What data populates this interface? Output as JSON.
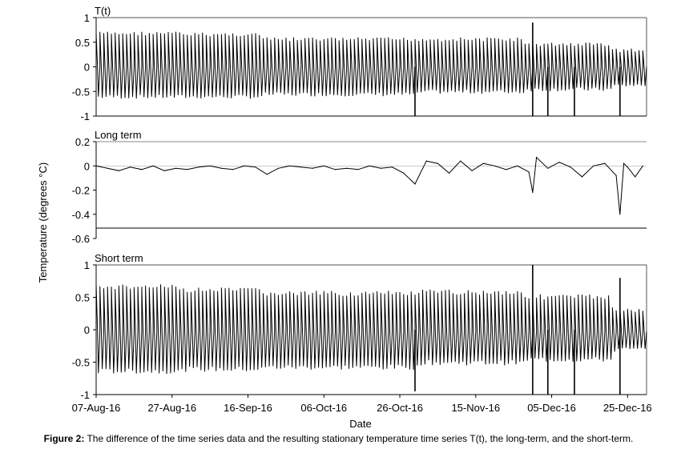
{
  "figure": {
    "ylabel": "Temperature (degrees °C)",
    "xlabel": "Date",
    "caption_label": "Figure 2:",
    "caption_text": " The difference of the time series data and the resulting stationary temperature time series T(t), the long-term, and the short-term."
  },
  "chart_data": [
    {
      "type": "line",
      "title": "T(t)",
      "xlabel": "",
      "ylabel": "",
      "ylim": [
        -1,
        1
      ],
      "yticks": [
        1,
        0.5,
        0,
        -0.5,
        -1
      ],
      "ytick_labels": [
        "1",
        "0.5",
        "0",
        "-0.5",
        "-1"
      ],
      "grid": false,
      "series": [
        {
          "x_start": "2016-08-07",
          "x_end": "2016-12-30",
          "description_values": "daily oscillation",
          "segments": [
            {
              "from": "2016-08-07",
              "to": "2016-08-30",
              "daily_max": 0.72,
              "daily_min": -0.65
            },
            {
              "from": "2016-08-30",
              "to": "2016-09-20",
              "daily_max": 0.7,
              "daily_min": -0.65
            },
            {
              "from": "2016-09-20",
              "to": "2016-10-31",
              "daily_max": 0.6,
              "daily_min": -0.6
            },
            {
              "from": "2016-10-31",
              "to": "2016-11-28",
              "daily_max": 0.6,
              "daily_min": -0.55
            },
            {
              "from": "2016-11-28",
              "to": "2016-12-21",
              "daily_max": 0.5,
              "daily_min": -0.5
            },
            {
              "from": "2016-12-21",
              "to": "2016-12-30",
              "daily_max": 0.38,
              "daily_min": -0.42
            }
          ],
          "spikes": [
            {
              "date": "2016-10-30",
              "value": -1.0
            },
            {
              "date": "2016-11-30",
              "value": 0.9
            },
            {
              "date": "2016-11-30",
              "value": -1.0
            },
            {
              "date": "2016-12-04",
              "value": -1.0
            },
            {
              "date": "2016-12-11",
              "value": -1.0
            },
            {
              "date": "2016-12-23",
              "value": -1.0
            }
          ]
        }
      ]
    },
    {
      "type": "line",
      "title": "Long term",
      "xlabel": "",
      "ylabel": "",
      "ylim": [
        -0.6,
        0.2
      ],
      "yticks": [
        0.2,
        0,
        -0.2,
        -0.4,
        -0.6
      ],
      "ytick_labels": [
        "0.2",
        "0",
        "-0.2",
        "-0.4",
        "-0.6"
      ],
      "grid": false,
      "series": [
        {
          "x": [
            "2016-08-07",
            "2016-08-10",
            "2016-08-13",
            "2016-08-16",
            "2016-08-19",
            "2016-08-22",
            "2016-08-25",
            "2016-08-28",
            "2016-08-31",
            "2016-09-03",
            "2016-09-06",
            "2016-09-09",
            "2016-09-12",
            "2016-09-15",
            "2016-09-18",
            "2016-09-21",
            "2016-09-24",
            "2016-09-27",
            "2016-09-30",
            "2016-10-03",
            "2016-10-06",
            "2016-10-09",
            "2016-10-12",
            "2016-10-15",
            "2016-10-18",
            "2016-10-21",
            "2016-10-24",
            "2016-10-27",
            "2016-10-30",
            "2016-11-02",
            "2016-11-05",
            "2016-11-08",
            "2016-11-11",
            "2016-11-14",
            "2016-11-17",
            "2016-11-20",
            "2016-11-23",
            "2016-11-26",
            "2016-11-29",
            "2016-11-30",
            "2016-12-01",
            "2016-12-04",
            "2016-12-07",
            "2016-12-10",
            "2016-12-13",
            "2016-12-16",
            "2016-12-19",
            "2016-12-22",
            "2016-12-23",
            "2016-12-24",
            "2016-12-25",
            "2016-12-27",
            "2016-12-29"
          ],
          "y": [
            0.0,
            -0.02,
            -0.04,
            -0.01,
            -0.03,
            0.0,
            -0.04,
            -0.02,
            -0.03,
            -0.01,
            0.0,
            -0.02,
            -0.03,
            0.0,
            -0.01,
            -0.07,
            -0.02,
            0.0,
            -0.01,
            -0.02,
            0.0,
            -0.03,
            -0.02,
            -0.03,
            0.0,
            -0.02,
            -0.01,
            -0.06,
            -0.15,
            0.04,
            0.02,
            -0.06,
            0.04,
            -0.04,
            0.02,
            0.0,
            -0.03,
            0.0,
            -0.05,
            -0.22,
            0.07,
            -0.02,
            0.03,
            -0.01,
            -0.09,
            0.0,
            0.02,
            -0.08,
            -0.4,
            0.02,
            -0.01,
            -0.09,
            0.0
          ]
        }
      ]
    },
    {
      "type": "line",
      "title": "Short term",
      "xlabel": "Date",
      "ylabel": "",
      "ylim": [
        -1,
        1
      ],
      "yticks": [
        1,
        0.5,
        0,
        -0.5,
        -1
      ],
      "ytick_labels": [
        "1",
        "0.5",
        "0",
        "-0.5",
        "-1"
      ],
      "xtick_labels": [
        "07-Aug-16",
        "27-Aug-16",
        "16-Sep-16",
        "06-Oct-16",
        "26-Oct-16",
        "15-Nov-16",
        "05-Dec-16",
        "25-Dec-16"
      ],
      "grid": false,
      "series": [
        {
          "x_start": "2016-08-07",
          "x_end": "2016-12-30",
          "description_values": "daily oscillation",
          "segments": [
            {
              "from": "2016-08-07",
              "to": "2016-08-30",
              "daily_max": 0.7,
              "daily_min": -0.68
            },
            {
              "from": "2016-08-30",
              "to": "2016-09-20",
              "daily_max": 0.65,
              "daily_min": -0.65
            },
            {
              "from": "2016-09-20",
              "to": "2016-10-31",
              "daily_max": 0.6,
              "daily_min": -0.62
            },
            {
              "from": "2016-10-31",
              "to": "2016-11-28",
              "daily_max": 0.62,
              "daily_min": -0.55
            },
            {
              "from": "2016-11-28",
              "to": "2016-12-21",
              "daily_max": 0.55,
              "daily_min": -0.5
            },
            {
              "from": "2016-12-21",
              "to": "2016-12-30",
              "daily_max": 0.35,
              "daily_min": -0.35
            }
          ],
          "spikes": [
            {
              "date": "2016-10-30",
              "value": -0.95
            },
            {
              "date": "2016-11-30",
              "value": 1.0
            },
            {
              "date": "2016-11-30",
              "value": -1.0
            },
            {
              "date": "2016-12-04",
              "value": -1.0
            },
            {
              "date": "2016-12-11",
              "value": -1.0
            },
            {
              "date": "2016-12-23",
              "value": 0.8
            },
            {
              "date": "2016-12-23",
              "value": -1.0
            }
          ]
        }
      ]
    }
  ]
}
